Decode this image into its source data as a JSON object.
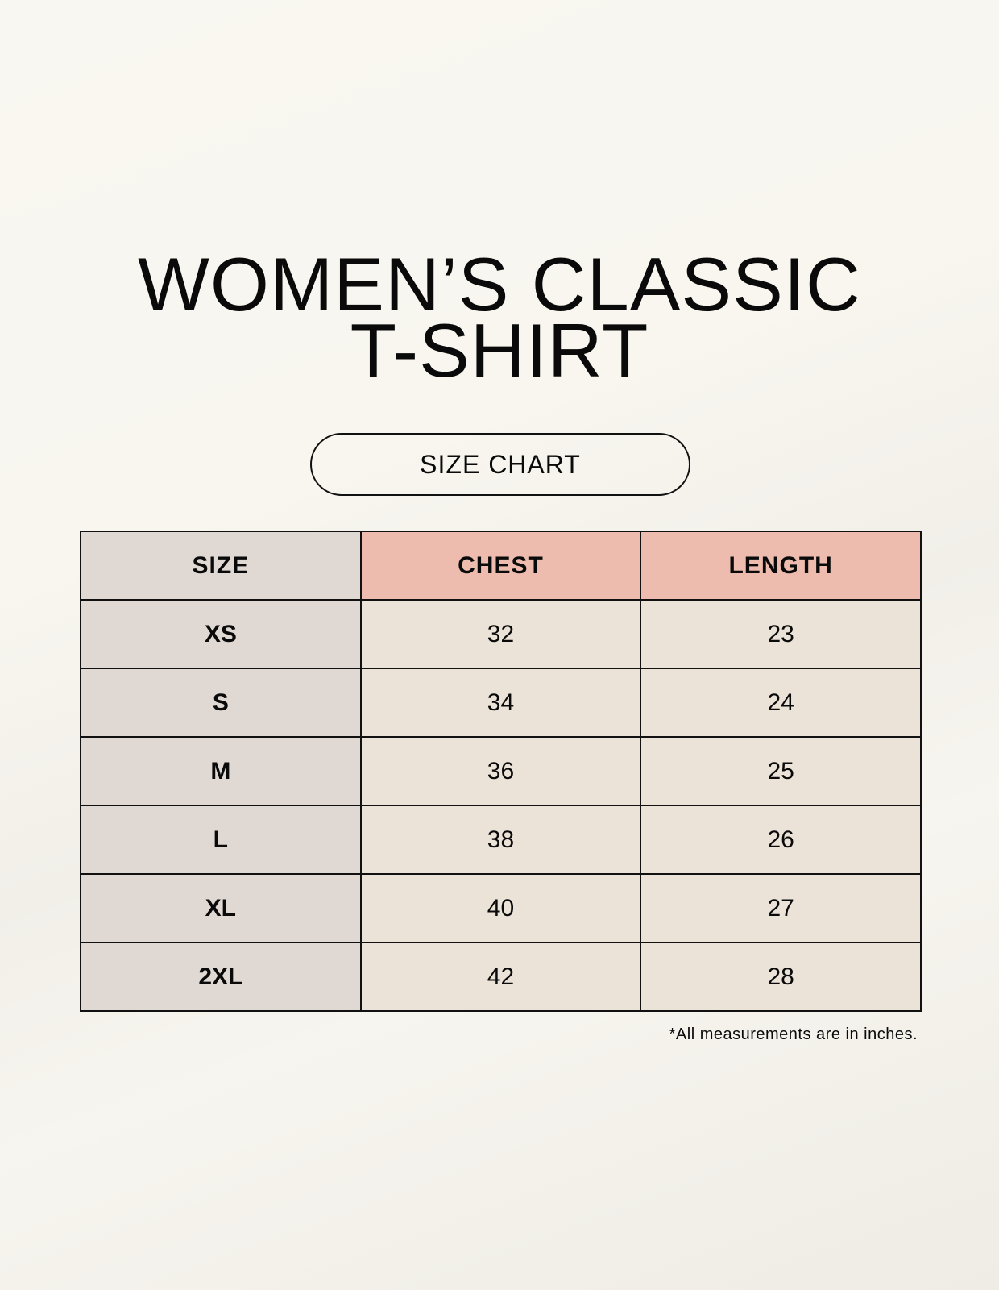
{
  "title": {
    "line1": "WOMEN’S CLASSIC",
    "line2": "T-SHIRT"
  },
  "subtitle": "SIZE CHART",
  "table": {
    "headers": [
      "SIZE",
      "CHEST",
      "LENGTH"
    ],
    "rows": [
      [
        "XS",
        "32",
        "23"
      ],
      [
        "S",
        "34",
        "24"
      ],
      [
        "M",
        "36",
        "25"
      ],
      [
        "L",
        "38",
        "26"
      ],
      [
        "XL",
        "40",
        "27"
      ],
      [
        "2XL",
        "42",
        "28"
      ]
    ]
  },
  "footnote": "*All measurements are in inches.",
  "colors": {
    "size_column": "#e0d8d3",
    "measure_header": "#edbcae",
    "cell": "#ebe2d8",
    "background": "#f8f6f0"
  }
}
